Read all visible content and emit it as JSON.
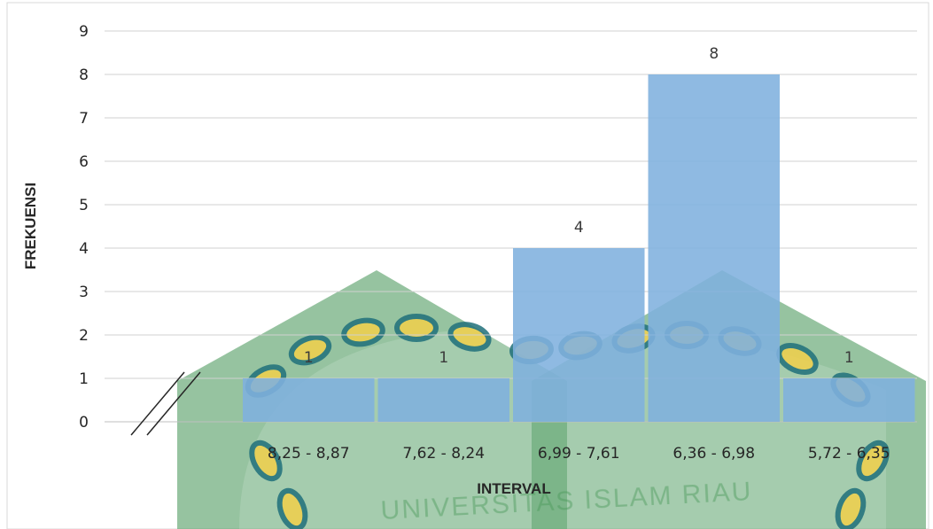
{
  "chart_data": {
    "type": "bar",
    "categories": [
      "8,25 - 8,87",
      "7,62 - 8,24",
      "6,99 - 7,61",
      "6,36 - 6,98",
      "5,72 - 6,35"
    ],
    "values": [
      1,
      1,
      4,
      8,
      1
    ],
    "data_labels": [
      "1",
      "1",
      "4",
      "8",
      "1"
    ],
    "xlabel": "INTERVAL",
    "ylabel": "FREKUENSI",
    "ylim": [
      0,
      9
    ],
    "yticks": [
      "0",
      "1",
      "2",
      "3",
      "4",
      "5",
      "6",
      "7",
      "8",
      "9"
    ],
    "grid": true,
    "axis_break": true,
    "bar_color": "#7fb0de",
    "legend": "none"
  },
  "watermark": {
    "text": "UNIVERSITAS ISLAM RIAU",
    "colors": {
      "green": "#2e8b57",
      "teal": "#1f6f7a",
      "yellow": "#f2d04a"
    }
  }
}
